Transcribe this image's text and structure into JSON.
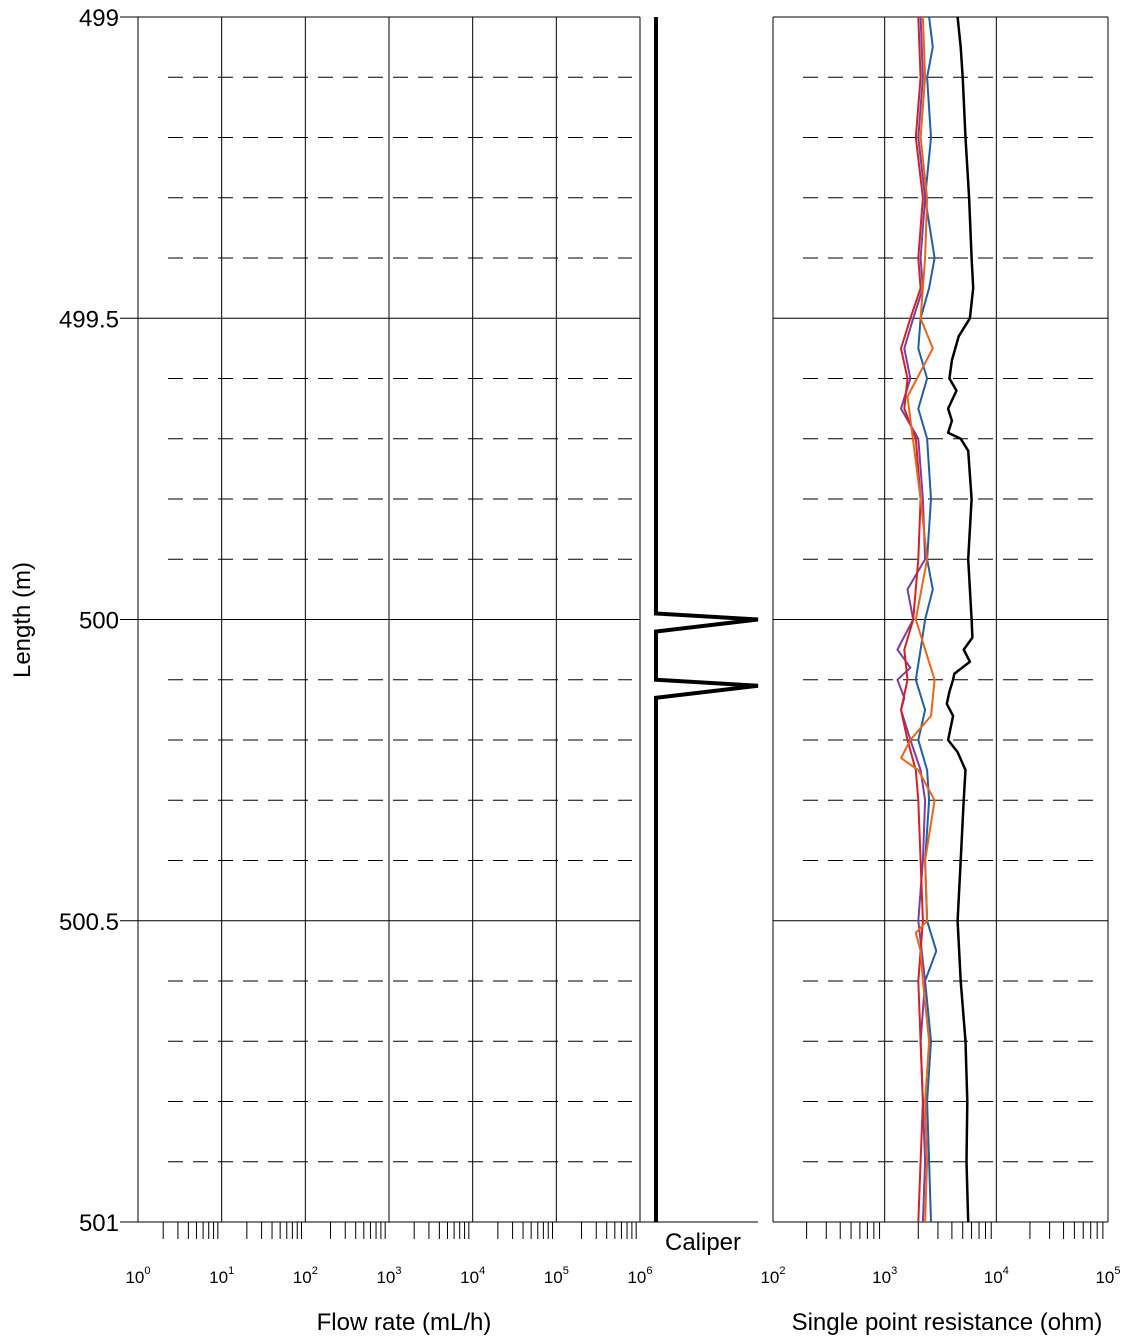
{
  "chart_data": [
    {
      "type": "line",
      "name_note": "",
      "xlabel": "Flow rate (mL/h)",
      "ylabel": "Length (m)",
      "xscale": "log",
      "xlim": [
        1,
        1000000
      ],
      "ylim": [
        501,
        499
      ],
      "y_ticks": [
        "499",
        "499.5",
        "500",
        "500.5",
        "501"
      ],
      "x_ticks": [
        {
          "base": "10",
          "exp": "0"
        },
        {
          "base": "10",
          "exp": "1"
        },
        {
          "base": "10",
          "exp": "2"
        },
        {
          "base": "10",
          "exp": "3"
        },
        {
          "base": "10",
          "exp": "4"
        },
        {
          "base": "10",
          "exp": "5"
        },
        {
          "base": "10",
          "exp": "6"
        }
      ],
      "grid": "solid major, dashed minor every 0.1 m",
      "series": []
    },
    {
      "type": "line",
      "label": "Caliper",
      "ylim": [
        501,
        499
      ],
      "series": [
        {
          "color": "#000000",
          "baseline": 0,
          "spikes": [
            {
              "y": [
                499.99,
                500.0,
                500.02
              ],
              "peak": 1
            },
            {
              "y": [
                500.1,
                500.11,
                500.13
              ],
              "peak": 1
            }
          ]
        }
      ]
    },
    {
      "type": "line",
      "xlabel": "Single point resistance (ohm)",
      "xscale": "log",
      "xlim": [
        100,
        100000
      ],
      "ylim": [
        501,
        499
      ],
      "x_ticks": [
        {
          "base": "10",
          "exp": "2"
        },
        {
          "base": "10",
          "exp": "3"
        },
        {
          "base": "10",
          "exp": "4"
        },
        {
          "base": "10",
          "exp": "5"
        }
      ],
      "grid": "solid major, dashed minor every 0.1 m",
      "series": [
        {
          "color": "#000000",
          "y": [
            499.0,
            499.05,
            499.1,
            499.2,
            499.3,
            499.4,
            499.45,
            499.5,
            499.53,
            499.57,
            499.6,
            499.62,
            499.65,
            499.67,
            499.69,
            499.7,
            499.72,
            499.8,
            499.9,
            500.0,
            500.03,
            500.05,
            500.07,
            500.09,
            500.1,
            500.12,
            500.14,
            500.16,
            500.2,
            500.22,
            500.25,
            500.3,
            500.4,
            500.5,
            500.6,
            500.7,
            500.8,
            500.9,
            501.0
          ],
          "x": [
            4500,
            4800,
            5000,
            5300,
            5700,
            6000,
            6200,
            5800,
            4600,
            4000,
            3800,
            4400,
            3700,
            4000,
            3700,
            4800,
            5600,
            6000,
            5600,
            6000,
            6100,
            5100,
            5800,
            4200,
            4100,
            3800,
            3600,
            4100,
            3700,
            4500,
            5300,
            5100,
            4800,
            4500,
            4800,
            5300,
            5500,
            5400,
            5600
          ]
        },
        {
          "color": "#1f5fa8",
          "y": [
            499.0,
            499.05,
            499.1,
            499.2,
            499.3,
            499.4,
            499.45,
            499.5,
            499.55,
            499.6,
            499.65,
            499.7,
            499.8,
            499.9,
            499.95,
            500.0,
            500.05,
            500.1,
            500.15,
            500.2,
            500.25,
            500.3,
            500.4,
            500.5,
            500.55,
            500.6,
            500.7,
            500.8,
            500.9,
            501.0
          ],
          "x": [
            2500,
            2700,
            2400,
            2600,
            2300,
            2800,
            2500,
            2100,
            2000,
            2400,
            2000,
            2400,
            2600,
            2400,
            2700,
            2300,
            2100,
            1900,
            2300,
            2000,
            2400,
            2500,
            2300,
            2400,
            2900,
            2300,
            2600,
            2400,
            2500,
            2600
          ]
        },
        {
          "color": "#7b3f9e",
          "y": [
            499.0,
            499.1,
            499.2,
            499.3,
            499.4,
            499.45,
            499.5,
            499.55,
            499.6,
            499.65,
            499.7,
            499.8,
            499.9,
            499.95,
            500.0,
            500.05,
            500.08,
            500.1,
            500.13,
            500.15,
            500.2,
            500.25,
            500.3,
            500.4,
            500.5,
            500.6,
            500.7,
            500.8,
            500.9,
            501.0
          ],
          "x": [
            2100,
            2200,
            2000,
            2300,
            2100,
            2200,
            1800,
            1500,
            1700,
            1400,
            2000,
            2200,
            2300,
            1600,
            1800,
            1300,
            1700,
            1300,
            1500,
            1400,
            1700,
            2100,
            2300,
            2200,
            2000,
            2300,
            2100,
            2200,
            2300,
            2200
          ]
        },
        {
          "color": "#d42027",
          "y": [
            499.0,
            499.1,
            499.2,
            499.3,
            499.4,
            499.45,
            499.5,
            499.55,
            499.6,
            499.65,
            499.7,
            499.8,
            499.9,
            500.0,
            500.05,
            500.1,
            500.15,
            500.2,
            500.25,
            500.3,
            500.4,
            500.5,
            500.6,
            500.7,
            500.8,
            500.9,
            501.0
          ],
          "x": [
            2000,
            2100,
            1900,
            2200,
            2000,
            2100,
            1700,
            1400,
            1600,
            1500,
            1900,
            2100,
            2000,
            1800,
            1500,
            1600,
            1400,
            1600,
            1900,
            2000,
            2100,
            2200,
            2000,
            2100,
            2200,
            2100,
            2000
          ]
        },
        {
          "color": "#e8661a",
          "y": [
            499.0,
            499.1,
            499.2,
            499.3,
            499.4,
            499.5,
            499.55,
            499.63,
            499.8,
            499.9,
            500.0,
            500.1,
            500.16,
            500.2,
            500.23,
            500.25,
            500.3,
            500.4,
            500.5,
            500.52,
            500.55,
            500.6,
            500.7,
            500.8,
            500.9,
            501.0
          ],
          "x": [
            2200,
            2300,
            2100,
            2400,
            2300,
            2100,
            2700,
            1600,
            2100,
            2400,
            1900,
            2800,
            2600,
            1700,
            1400,
            2000,
            2800,
            2300,
            2400,
            1900,
            2100,
            2200,
            2500,
            2300,
            2400,
            2300
          ]
        }
      ]
    }
  ]
}
